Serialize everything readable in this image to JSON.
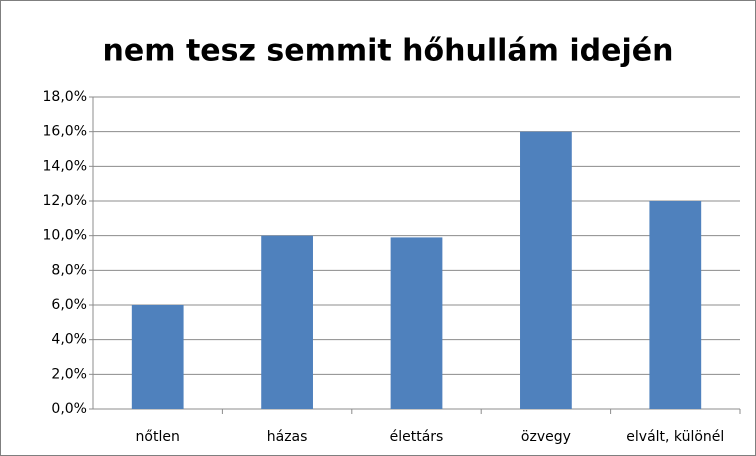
{
  "chart_data": {
    "type": "bar",
    "title": "nem tesz semmit hőhullám idején",
    "categories": [
      "nőtlen",
      "házas",
      "élettárs",
      "özvegy",
      "elvált, különél"
    ],
    "values": [
      6.0,
      10.0,
      9.9,
      16.0,
      12.0
    ],
    "color": "#4f81bd",
    "ylim": [
      0,
      18
    ],
    "yticks": [
      {
        "value": 0,
        "label": "0,0%"
      },
      {
        "value": 2,
        "label": "2,0%"
      },
      {
        "value": 4,
        "label": "4,0%"
      },
      {
        "value": 6,
        "label": "6,0%"
      },
      {
        "value": 8,
        "label": "8,0%"
      },
      {
        "value": 10,
        "label": "10,0%"
      },
      {
        "value": 12,
        "label": "12,0%"
      },
      {
        "value": 14,
        "label": "14,0%"
      },
      {
        "value": 16,
        "label": "16,0%"
      },
      {
        "value": 18,
        "label": "18,0%"
      }
    ],
    "grid": true
  }
}
